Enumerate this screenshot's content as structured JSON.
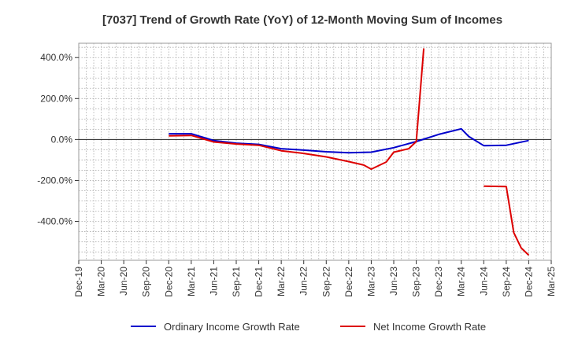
{
  "chart_data": {
    "type": "line",
    "title": "[7037]  Trend of Growth Rate (YoY) of 12-Month Moving Sum of Incomes",
    "xlabel": "",
    "ylabel": "",
    "x_ticks": [
      "Dec-19",
      "Mar-20",
      "Jun-20",
      "Sep-20",
      "Dec-20",
      "Mar-21",
      "Jun-21",
      "Sep-21",
      "Dec-21",
      "Mar-22",
      "Jun-22",
      "Sep-22",
      "Dec-22",
      "Mar-23",
      "Jun-23",
      "Sep-23",
      "Dec-23",
      "Mar-24",
      "Jun-24",
      "Sep-24",
      "Dec-24",
      "Mar-25"
    ],
    "y_ticks": [
      {
        "value": 400,
        "label": "400.0%"
      },
      {
        "value": 200,
        "label": "200.0%"
      },
      {
        "value": 0,
        "label": "0.0%"
      },
      {
        "value": -200,
        "label": "-200.0%"
      },
      {
        "value": -400,
        "label": "-400.0%"
      }
    ],
    "ylim": [
      -590,
      470
    ],
    "grid": true,
    "legend_position": "bottom",
    "series": [
      {
        "name": "Ordinary Income Growth Rate",
        "color": "#0000cc",
        "points": [
          {
            "x": "Dec-20",
            "y": 28
          },
          {
            "x": "Mar-21",
            "y": 28
          },
          {
            "x": "Jun-21",
            "y": -5
          },
          {
            "x": "Sep-21",
            "y": -18
          },
          {
            "x": "Dec-21",
            "y": -24
          },
          {
            "x": "Mar-22",
            "y": -45
          },
          {
            "x": "Jun-22",
            "y": -52
          },
          {
            "x": "Sep-22",
            "y": -60
          },
          {
            "x": "Dec-22",
            "y": -65
          },
          {
            "x": "Mar-23",
            "y": -62
          },
          {
            "x": "Jun-23",
            "y": -40
          },
          {
            "x": "Sep-23",
            "y": -10
          },
          {
            "x": "Dec-23",
            "y": 25
          },
          {
            "x": "Mar-24",
            "y": 52
          },
          {
            "x": "Apr-24",
            "y": 15
          },
          {
            "x": "Jun-24",
            "y": -30
          },
          {
            "x": "Sep-24",
            "y": -28
          },
          {
            "x": "Dec-24",
            "y": -5
          }
        ]
      },
      {
        "name": "Net Income Growth Rate",
        "color": "#dd0000",
        "points": [
          {
            "x": "Dec-20",
            "y": 18
          },
          {
            "x": "Mar-21",
            "y": 20
          },
          {
            "x": "Jun-21",
            "y": -12
          },
          {
            "x": "Sep-21",
            "y": -22
          },
          {
            "x": "Dec-21",
            "y": -28
          },
          {
            "x": "Mar-22",
            "y": -55
          },
          {
            "x": "Jun-22",
            "y": -68
          },
          {
            "x": "Sep-22",
            "y": -85
          },
          {
            "x": "Dec-22",
            "y": -108
          },
          {
            "x": "Feb-23",
            "y": -125
          },
          {
            "x": "Mar-23",
            "y": -145
          },
          {
            "x": "May-23",
            "y": -110
          },
          {
            "x": "Jun-23",
            "y": -62
          },
          {
            "x": "Aug-23",
            "y": -45
          },
          {
            "x": "Sep-23",
            "y": -10
          },
          {
            "x": "Oct-23",
            "y": 445
          },
          {
            "x": "Jun-24",
            "y": null
          },
          {
            "x": "Jun-24",
            "y": -228
          },
          {
            "x": "Sep-24",
            "y": -230
          },
          {
            "x": "Oct-24",
            "y": -455
          },
          {
            "x": "Nov-24",
            "y": -530
          },
          {
            "x": "Dec-24",
            "y": -565
          }
        ]
      }
    ]
  }
}
